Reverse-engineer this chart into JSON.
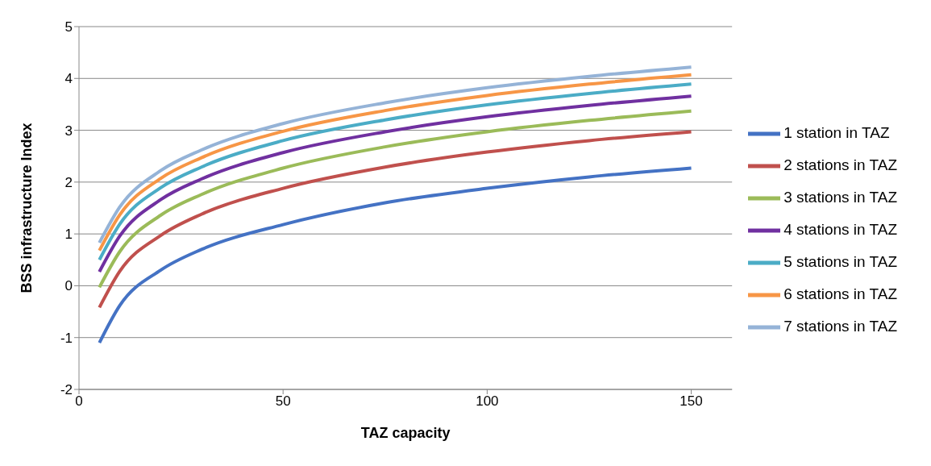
{
  "chart_data": {
    "type": "line",
    "xlabel": "TAZ capacity",
    "ylabel": "BSS infrastructure Index",
    "xlim": [
      0,
      160
    ],
    "xticks": [
      0,
      50,
      100,
      150
    ],
    "ylim": [
      -2,
      5
    ],
    "yticks": [
      -2,
      -1,
      0,
      1,
      2,
      3,
      4,
      5
    ],
    "grid": "y",
    "legend": "right",
    "marker": "none",
    "line_style": "solid",
    "x": [
      5,
      10,
      20,
      30,
      50,
      75,
      100,
      125,
      150
    ],
    "series": [
      {
        "name": "1 station in TAZ",
        "color": "#4472c4",
        "values": [
          -1.1,
          -0.38,
          0.3,
          0.7,
          1.18,
          1.6,
          1.88,
          2.1,
          2.27
        ]
      },
      {
        "name": "2 stations in TAZ",
        "color": "#c0504d",
        "values": [
          -0.42,
          0.28,
          0.97,
          1.38,
          1.88,
          2.29,
          2.58,
          2.8,
          2.97
        ]
      },
      {
        "name": "3 stations in TAZ",
        "color": "#9bbb59",
        "values": [
          -0.03,
          0.66,
          1.36,
          1.76,
          2.27,
          2.68,
          2.97,
          3.19,
          3.37
        ]
      },
      {
        "name": "4 stations in TAZ",
        "color": "#7030a0",
        "values": [
          0.27,
          0.96,
          1.66,
          2.06,
          2.57,
          2.97,
          3.26,
          3.48,
          3.66
        ]
      },
      {
        "name": "5 stations in TAZ",
        "color": "#4bacc6",
        "values": [
          0.5,
          1.19,
          1.89,
          2.29,
          2.8,
          3.2,
          3.49,
          3.71,
          3.89
        ]
      },
      {
        "name": "6 stations in TAZ",
        "color": "#f79646",
        "values": [
          0.68,
          1.37,
          2.07,
          2.47,
          2.98,
          3.38,
          3.67,
          3.89,
          4.07
        ]
      },
      {
        "name": "7 stations in TAZ",
        "color": "#95b3d7",
        "values": [
          0.83,
          1.52,
          2.22,
          2.62,
          3.13,
          3.53,
          3.82,
          4.04,
          4.22
        ]
      }
    ]
  }
}
